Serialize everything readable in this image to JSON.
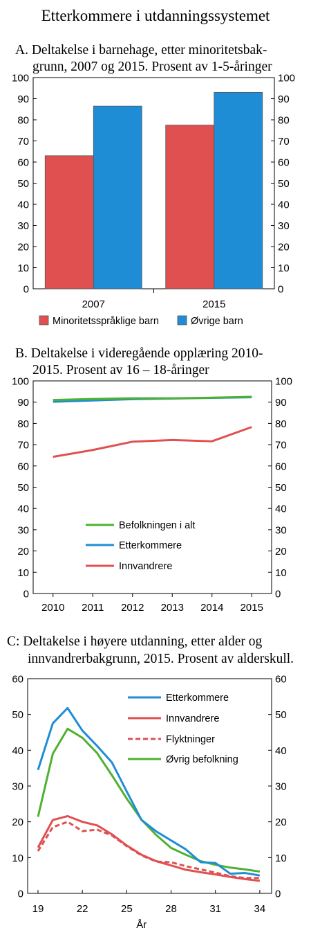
{
  "figure_title": "Etterkommere i utdanningssystemet",
  "chart_data": [
    {
      "type": "bar",
      "panel_title_lines": [
        "A.  Deltakelse i barnehage, etter minoritetsbak-",
        "grunn, 2007 og 2015. Prosent av 1-5-åringer"
      ],
      "categories": [
        "2007",
        "2015"
      ],
      "series": [
        {
          "name": "Minoritetsspråklige barn",
          "values": [
            63,
            77.5
          ],
          "color": "#e05050"
        },
        {
          "name": "Øvrige barn",
          "values": [
            86.5,
            93
          ],
          "color": "#1f8dd6"
        }
      ],
      "ylim": [
        0,
        100
      ],
      "yticks": [
        "0",
        "10",
        "20",
        "30",
        "40",
        "50",
        "60",
        "70",
        "80",
        "90",
        "100"
      ],
      "legend_position": "bottom"
    },
    {
      "type": "line",
      "panel_title_lines": [
        "B.  Deltakelse i videregående opplæring 2010-",
        "2015. Prosent av 16 – 18-åringer"
      ],
      "x": [
        2010,
        2011,
        2012,
        2013,
        2014,
        2015
      ],
      "xticks": [
        "2010",
        "2011",
        "2012",
        "2013",
        "2014",
        "2015"
      ],
      "series": [
        {
          "name": "Befolkningen i alt",
          "values": [
            91,
            91.5,
            91.8,
            91.8,
            92.1,
            92.5
          ],
          "color": "#50b030",
          "dash": false
        },
        {
          "name": "Etterkommere",
          "values": [
            90.2,
            90.8,
            91.4,
            91.7,
            92,
            92.3
          ],
          "color": "#1f8dd6",
          "dash": false
        },
        {
          "name": "Innvandrere",
          "values": [
            64.3,
            67.5,
            71.4,
            72.2,
            71.6,
            78.3
          ],
          "color": "#e05050",
          "dash": false
        }
      ],
      "ylim": [
        0,
        100
      ],
      "yticks": [
        "0",
        "10",
        "20",
        "30",
        "40",
        "50",
        "60",
        "70",
        "80",
        "90",
        "100"
      ],
      "legend_position": "bottom-center"
    },
    {
      "type": "line",
      "panel_title_lines": [
        "C:  Deltakelse i høyere utdanning, etter alder og",
        "innvandrerbakgrunn, 2015. Prosent av alderskull."
      ],
      "xlabel": "År",
      "x": [
        19,
        20,
        21,
        22,
        23,
        24,
        25,
        26,
        27,
        28,
        29,
        30,
        31,
        32,
        33,
        34
      ],
      "xticks": [
        "19",
        "22",
        "25",
        "28",
        "31",
        "34"
      ],
      "series": [
        {
          "name": "Etterkommere",
          "values": [
            34.5,
            47.5,
            51.8,
            45.5,
            41.2,
            36.6,
            28.5,
            20.5,
            17.3,
            14.8,
            12.3,
            8.7,
            8.5,
            5.5,
            5.7,
            5
          ],
          "color": "#1f8dd6",
          "dash": false
        },
        {
          "name": "Innvandrere",
          "values": [
            12.8,
            20.5,
            21.6,
            20,
            19,
            16.5,
            13.4,
            10.8,
            9,
            7.8,
            6.6,
            5.9,
            5.3,
            4.6,
            4,
            3.5
          ],
          "color": "#e05050",
          "dash": false
        },
        {
          "name": "Flyktninger",
          "values": [
            11.8,
            18.5,
            20,
            17.4,
            17.8,
            16.2,
            13.2,
            10.6,
            8.9,
            8.7,
            7.6,
            6.7,
            5.8,
            4.8,
            4.3,
            4.3
          ],
          "color": "#e05050",
          "dash": true
        },
        {
          "name": "Øvrig befolkning",
          "values": [
            21.4,
            39,
            46,
            43.5,
            39.2,
            33,
            26.5,
            20.6,
            16.3,
            12.7,
            10.8,
            9,
            8,
            7.2,
            6.7,
            6.1
          ],
          "color": "#50b030",
          "dash": false
        }
      ],
      "ylim": [
        0,
        60
      ],
      "yticks": [
        "0",
        "10",
        "20",
        "30",
        "40",
        "50",
        "60"
      ],
      "legend_position": "top-right"
    }
  ]
}
